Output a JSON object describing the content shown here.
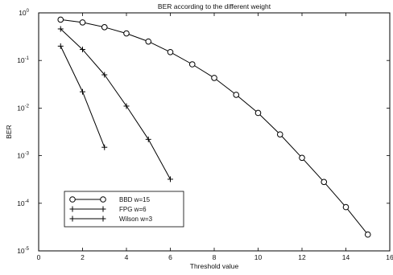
{
  "chart_data": {
    "type": "line",
    "title": "BER according to the different weight",
    "xlabel": "Threshold value",
    "ylabel": "BER",
    "x_ticks": [
      0,
      2,
      4,
      6,
      8,
      10,
      12,
      14,
      16
    ],
    "xlim": [
      0,
      16
    ],
    "y_scale": "log",
    "ylim": [
      1e-05,
      1
    ],
    "y_ticks": [
      {
        "base": "10",
        "exp": "0",
        "value": 1
      },
      {
        "base": "10",
        "exp": "-1",
        "value": 0.1
      },
      {
        "base": "10",
        "exp": "-2",
        "value": 0.01
      },
      {
        "base": "10",
        "exp": "-3",
        "value": 0.001
      },
      {
        "base": "10",
        "exp": "-4",
        "value": 0.0001
      },
      {
        "base": "10",
        "exp": "-5",
        "value": 1e-05
      }
    ],
    "legend_position": "bottom-left",
    "series": [
      {
        "name": "BBD w=15",
        "marker": "circle",
        "x": [
          1,
          2,
          3,
          4,
          5,
          6,
          7,
          8,
          9,
          10,
          11,
          12,
          13,
          14,
          15
        ],
        "y": [
          0.72,
          0.63,
          0.5,
          0.37,
          0.25,
          0.15,
          0.083,
          0.043,
          0.019,
          0.0079,
          0.0028,
          0.0009,
          0.00028,
          8.3e-05,
          2.2e-05
        ]
      },
      {
        "name": "FPG w=6",
        "marker": "plus",
        "x": [
          1,
          2,
          3,
          4,
          5,
          6
        ],
        "y": [
          0.46,
          0.17,
          0.05,
          0.011,
          0.0022,
          0.00032
        ]
      },
      {
        "name": "Wilson w=3",
        "marker": "plus",
        "x": [
          1,
          2,
          3
        ],
        "y": [
          0.2,
          0.022,
          0.0015
        ]
      }
    ]
  }
}
